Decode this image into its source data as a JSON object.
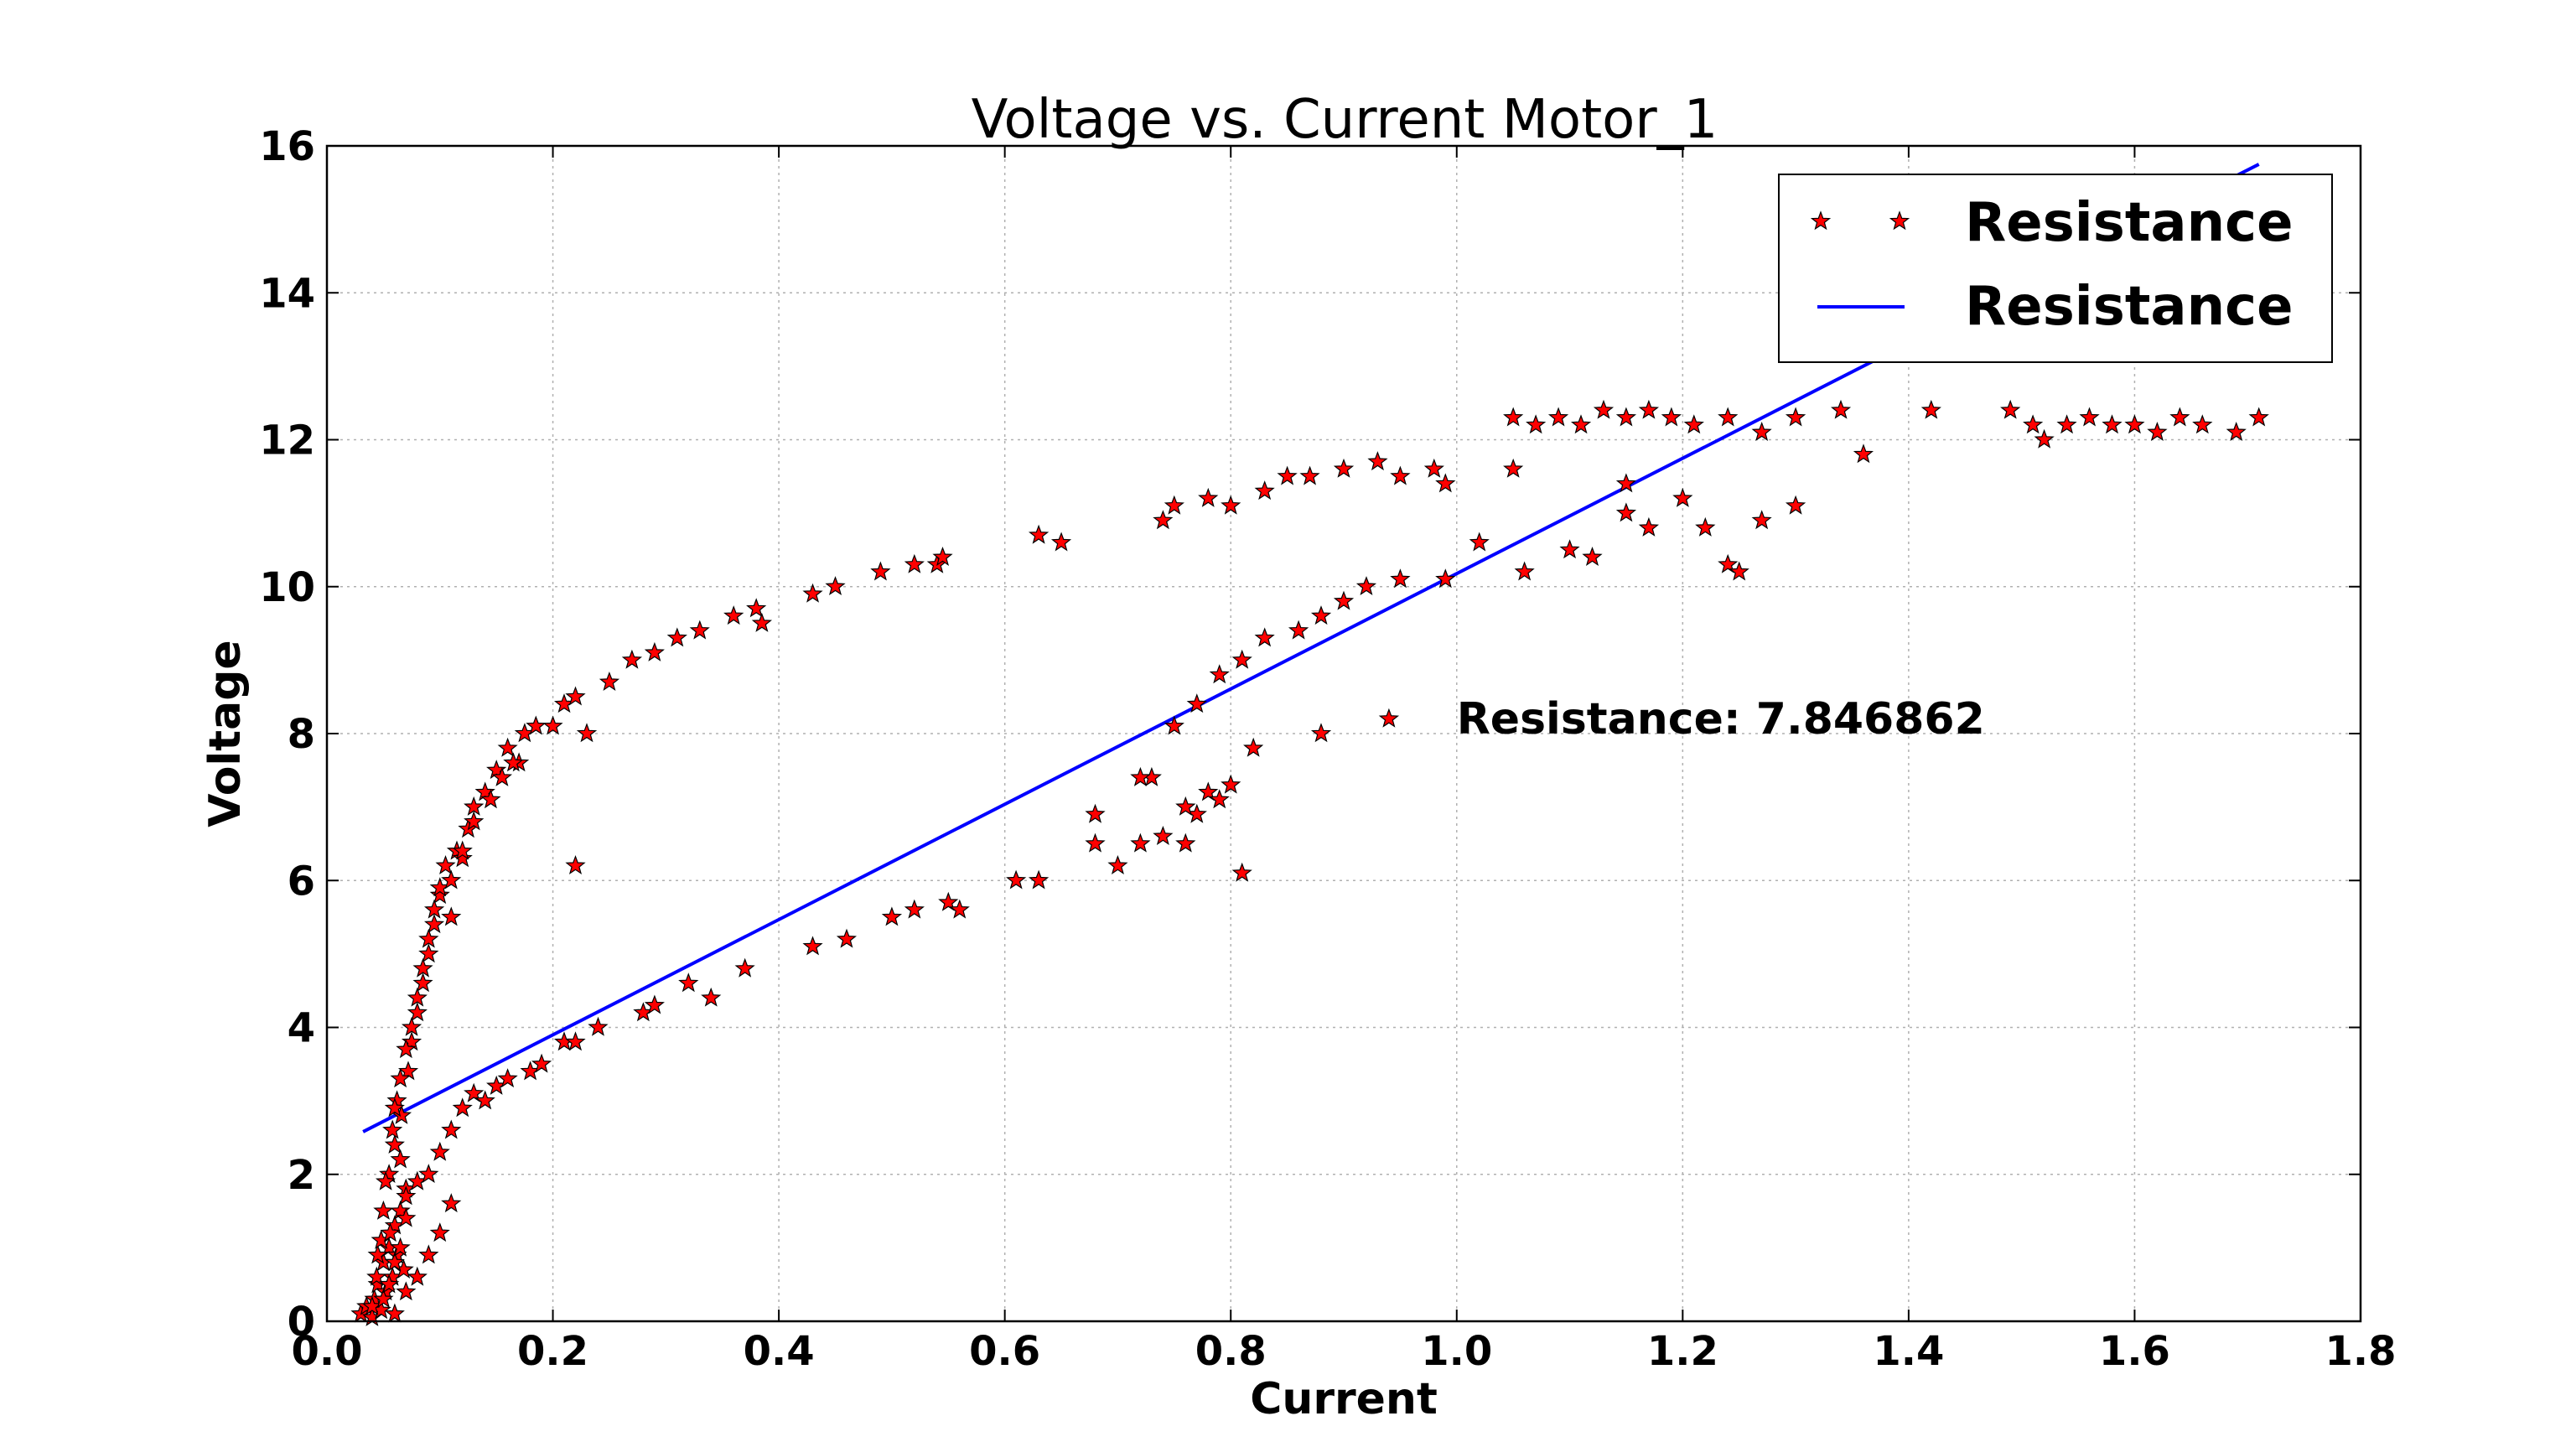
{
  "chart_data": {
    "type": "scatter",
    "title": "Voltage vs. Current Motor_1",
    "xlabel": "Current",
    "ylabel": "Voltage",
    "xlim": [
      0.0,
      1.8
    ],
    "ylim": [
      0,
      16
    ],
    "x_ticks": [
      "0.0",
      "0.2",
      "0.4",
      "0.6",
      "0.8",
      "1.0",
      "1.2",
      "1.4",
      "1.6",
      "1.8"
    ],
    "y_ticks": [
      "0",
      "2",
      "4",
      "6",
      "8",
      "10",
      "12",
      "14",
      "16"
    ],
    "grid": true,
    "legend_position": "top-right",
    "legend": [
      "Resistance",
      "Resistance"
    ],
    "annotation": {
      "text": "Resistance: 7.846862",
      "x": 1.0,
      "y": 8.0
    },
    "colors": {
      "points": "#ff0000",
      "point_edge": "#000000",
      "fit": "#0000ff"
    },
    "series": [
      {
        "name": "Resistance",
        "kind": "scatter",
        "marker": "star",
        "x": [
          0.03,
          0.035,
          0.04,
          0.042,
          0.045,
          0.048,
          0.05,
          0.052,
          0.055,
          0.058,
          0.06,
          0.062,
          0.065,
          0.068,
          0.07,
          0.04,
          0.045,
          0.05,
          0.055,
          0.06,
          0.065,
          0.07,
          0.048,
          0.052,
          0.058,
          0.062,
          0.044,
          0.056,
          0.066,
          0.072,
          0.075,
          0.08,
          0.085,
          0.09,
          0.095,
          0.1,
          0.105,
          0.11,
          0.115,
          0.12,
          0.125,
          0.13,
          0.14,
          0.15,
          0.16,
          0.17,
          0.06,
          0.065,
          0.07,
          0.075,
          0.08,
          0.085,
          0.09,
          0.095,
          0.1,
          0.11,
          0.12,
          0.13,
          0.145,
          0.155,
          0.165,
          0.175,
          0.185,
          0.2,
          0.21,
          0.22,
          0.23,
          0.25,
          0.27,
          0.29,
          0.31,
          0.33,
          0.36,
          0.38,
          0.385,
          0.43,
          0.45,
          0.49,
          0.52,
          0.54,
          0.545,
          0.63,
          0.65,
          0.74,
          0.75,
          0.78,
          0.8,
          0.83,
          0.85,
          0.87,
          0.9,
          0.93,
          0.95,
          0.98,
          0.99,
          1.05,
          1.07,
          1.09,
          1.11,
          1.13,
          1.15,
          1.17,
          1.19,
          1.21,
          1.24,
          1.27,
          1.3,
          1.34,
          1.42,
          1.49,
          1.51,
          1.52,
          1.54,
          1.56,
          1.58,
          1.6,
          1.62,
          1.64,
          1.66,
          1.69,
          1.71,
          0.08,
          0.09,
          0.1,
          0.11,
          0.12,
          0.13,
          0.14,
          0.15,
          0.16,
          0.18,
          0.19,
          0.21,
          0.22,
          0.24,
          0.28,
          0.29,
          0.32,
          0.34,
          0.37,
          0.43,
          0.46,
          0.5,
          0.52,
          0.55,
          0.56,
          0.61,
          0.63,
          0.68,
          0.72,
          0.74,
          0.77,
          0.78,
          0.8,
          0.82,
          0.88,
          0.94,
          0.73,
          0.75,
          0.77,
          0.79,
          0.81,
          0.83,
          0.86,
          0.88,
          0.9,
          0.92,
          0.95,
          0.99,
          1.02,
          1.06,
          1.1,
          1.12,
          1.15,
          1.17,
          1.2,
          1.22,
          1.24,
          1.27,
          1.3,
          1.36,
          1.05,
          1.15,
          1.25,
          0.22,
          0.76,
          0.68,
          0.7,
          0.72,
          0.76,
          0.79,
          0.81,
          0.06,
          0.07,
          0.08,
          0.09,
          0.1,
          0.11,
          0.05,
          0.055,
          0.06,
          0.065,
          0.07
        ],
        "y": [
          0.1,
          0.2,
          0.05,
          0.3,
          0.5,
          0.15,
          0.8,
          0.4,
          1.0,
          0.6,
          1.3,
          0.9,
          1.5,
          0.7,
          1.8,
          0.2,
          0.9,
          1.5,
          2.0,
          2.4,
          2.2,
          1.7,
          1.1,
          1.9,
          2.6,
          3.0,
          0.6,
          1.2,
          2.8,
          3.4,
          3.8,
          4.2,
          4.6,
          5.0,
          5.4,
          5.8,
          6.2,
          5.5,
          6.4,
          6.3,
          6.7,
          7.0,
          7.2,
          7.5,
          7.8,
          7.6,
          2.9,
          3.3,
          3.7,
          4.0,
          4.4,
          4.8,
          5.2,
          5.6,
          5.9,
          6.0,
          6.4,
          6.8,
          7.1,
          7.4,
          7.6,
          8.0,
          8.1,
          8.1,
          8.4,
          8.5,
          8.0,
          8.7,
          9.0,
          9.1,
          9.3,
          9.4,
          9.6,
          9.7,
          9.5,
          9.9,
          10.0,
          10.2,
          10.3,
          10.3,
          10.4,
          10.7,
          10.6,
          10.9,
          11.1,
          11.2,
          11.1,
          11.3,
          11.5,
          11.5,
          11.6,
          11.7,
          11.5,
          11.6,
          11.4,
          12.3,
          12.2,
          12.3,
          12.2,
          12.4,
          12.3,
          12.4,
          12.3,
          12.2,
          12.3,
          12.1,
          12.3,
          12.4,
          12.4,
          12.4,
          12.2,
          12.0,
          12.2,
          12.3,
          12.2,
          12.2,
          12.1,
          12.3,
          12.2,
          12.1,
          12.3,
          1.9,
          2.0,
          2.3,
          2.6,
          2.9,
          3.1,
          3.0,
          3.2,
          3.3,
          3.4,
          3.5,
          3.8,
          3.8,
          4.0,
          4.2,
          4.3,
          4.6,
          4.4,
          4.8,
          5.1,
          5.2,
          5.5,
          5.6,
          5.7,
          5.6,
          6.0,
          6.0,
          6.5,
          6.5,
          6.6,
          6.9,
          7.2,
          7.3,
          7.8,
          8.0,
          8.2,
          7.4,
          8.1,
          8.4,
          8.8,
          9.0,
          9.3,
          9.4,
          9.6,
          9.8,
          10.0,
          10.1,
          10.1,
          10.6,
          10.2,
          10.5,
          10.4,
          11.0,
          10.8,
          11.2,
          10.8,
          10.3,
          10.9,
          11.1,
          11.8,
          11.6,
          11.4,
          10.2,
          6.2,
          6.5,
          6.9,
          6.2,
          7.4,
          7.0,
          7.1,
          6.1,
          0.1,
          0.4,
          0.6,
          0.9,
          1.2,
          1.6,
          0.3,
          0.5,
          0.8,
          1.0,
          1.4
        ]
      },
      {
        "name": "Resistance",
        "kind": "line",
        "slope": 7.846862,
        "intercept": 2.33,
        "x": [
          0.032,
          1.71
        ],
        "y": [
          2.58,
          15.75
        ]
      }
    ]
  }
}
